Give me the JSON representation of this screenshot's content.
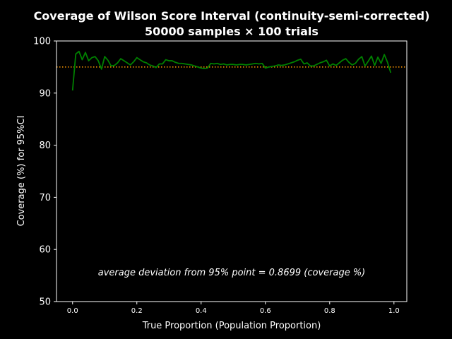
{
  "chart_data": {
    "type": "line",
    "title_line1": "Coverage of Wilson Score Interval (continuity-semi-corrected)",
    "title_line2": "50000 samples × 100 trials",
    "xlabel": "True Proportion (Population Proportion)",
    "ylabel": "Coverage (%) for 95%CI",
    "xlim": [
      -0.05,
      1.04
    ],
    "ylim": [
      50,
      100
    ],
    "x_ticks": [
      0.0,
      0.2,
      0.4,
      0.6,
      0.8,
      1.0
    ],
    "x_tick_labels": [
      "0.0",
      "0.2",
      "0.4",
      "0.6",
      "0.8",
      "1.0"
    ],
    "y_ticks": [
      50,
      60,
      70,
      80,
      90,
      100
    ],
    "y_tick_labels": [
      "50",
      "60",
      "70",
      "80",
      "90",
      "100"
    ],
    "annotation": "average deviation from 95% point = 0.8699 (coverage %)",
    "reference_line": {
      "y": 95,
      "style": "dotted",
      "color": "#ff9900"
    },
    "colors": {
      "background": "#000000",
      "line": "#008000",
      "axes": "#ffffff"
    },
    "series": [
      {
        "x": [
          0.0,
          0.01,
          0.02,
          0.03,
          0.04,
          0.05,
          0.06,
          0.07,
          0.08,
          0.09,
          0.1,
          0.11,
          0.12,
          0.13,
          0.14,
          0.15,
          0.16,
          0.17,
          0.18,
          0.19,
          0.2,
          0.21,
          0.22,
          0.23,
          0.24,
          0.25,
          0.26,
          0.27,
          0.28,
          0.29,
          0.3,
          0.31,
          0.32,
          0.33,
          0.34,
          0.35,
          0.36,
          0.37,
          0.38,
          0.39,
          0.4,
          0.41,
          0.42,
          0.43,
          0.44,
          0.45,
          0.46,
          0.47,
          0.48,
          0.49,
          0.5,
          0.51,
          0.52,
          0.53,
          0.54,
          0.55,
          0.56,
          0.57,
          0.58,
          0.59,
          0.6,
          0.61,
          0.62,
          0.63,
          0.64,
          0.65,
          0.66,
          0.67,
          0.68,
          0.69,
          0.7,
          0.71,
          0.72,
          0.73,
          0.74,
          0.75,
          0.76,
          0.77,
          0.78,
          0.79,
          0.8,
          0.81,
          0.82,
          0.83,
          0.84,
          0.85,
          0.86,
          0.87,
          0.88,
          0.89,
          0.9,
          0.91,
          0.92,
          0.93,
          0.94,
          0.95,
          0.96,
          0.97,
          0.98,
          0.99
        ],
        "y": [
          90.5,
          97.5,
          98.0,
          96.4,
          97.8,
          96.2,
          96.8,
          97.0,
          96.2,
          94.6,
          97.0,
          96.3,
          95.2,
          95.3,
          95.8,
          96.6,
          96.2,
          95.8,
          95.4,
          96.0,
          96.8,
          96.4,
          96.0,
          95.8,
          95.4,
          95.2,
          94.9,
          95.6,
          95.6,
          96.4,
          96.2,
          96.2,
          95.9,
          95.7,
          95.7,
          95.6,
          95.5,
          95.4,
          95.2,
          95.0,
          94.8,
          94.7,
          94.8,
          95.7,
          95.6,
          95.7,
          95.5,
          95.6,
          95.4,
          95.5,
          95.5,
          95.4,
          95.5,
          95.5,
          95.4,
          95.5,
          95.6,
          95.7,
          95.6,
          95.7,
          94.8,
          95.0,
          95.1,
          95.2,
          95.4,
          95.3,
          95.4,
          95.6,
          95.8,
          96.0,
          96.3,
          96.5,
          95.6,
          95.8,
          95.2,
          95.2,
          95.5,
          95.8,
          96.0,
          96.3,
          95.2,
          95.6,
          95.3,
          95.8,
          96.3,
          96.6,
          95.9,
          95.4,
          95.7,
          96.5,
          97.0,
          95.2,
          96.1,
          97.1,
          95.3,
          96.9,
          95.7,
          97.4,
          95.9,
          93.9
        ]
      }
    ]
  }
}
